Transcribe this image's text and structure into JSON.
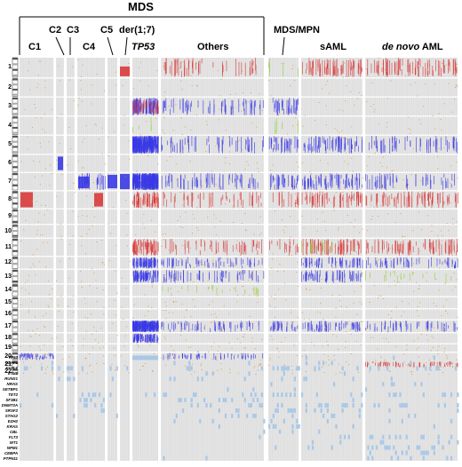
{
  "header": {
    "title": "MDS",
    "groups": [
      {
        "id": "c1",
        "label": "C1",
        "italic": false
      },
      {
        "id": "c2",
        "label": "C2",
        "italic": false
      },
      {
        "id": "c3",
        "label": "C3",
        "italic": false
      },
      {
        "id": "c4",
        "label": "C4",
        "italic": false
      },
      {
        "id": "c5",
        "label": "C5",
        "italic": false
      },
      {
        "id": "der17",
        "label": "der(1;7)",
        "italic": false
      },
      {
        "id": "tp53",
        "label": "TP53",
        "italic": true
      },
      {
        "id": "others",
        "label": "Others",
        "italic": false
      },
      {
        "id": "mdsmpn",
        "label": "MDS/MPN",
        "italic": false
      },
      {
        "id": "saml",
        "label": "sAML",
        "italic": false
      },
      {
        "id": "denovo",
        "label": "de novo",
        "label2": "AML",
        "italic": true
      }
    ]
  },
  "chromosomes": [
    "1",
    "2",
    "3",
    "4",
    "5",
    "6",
    "7",
    "8",
    "9",
    "10",
    "11",
    "12",
    "13",
    "14",
    "15",
    "16",
    "17",
    "18",
    "19",
    "20",
    "21",
    "22"
  ],
  "genes": [
    "TP53",
    "U2AF1",
    "ASXL1",
    "ETV6",
    "RUNX1",
    "NRAS",
    "SETBP1",
    "TET2",
    "SF3B1",
    "DNMT3A",
    "SRSF2",
    "STAG2",
    "EZH2",
    "KRAS",
    "CBL",
    "FLT3",
    "WT1",
    "NPM1",
    "CEBPA",
    "PTPN11"
  ],
  "colors": {
    "background": "#ffffff",
    "panel": "#e4e4e4",
    "loss": "#3a3ae6",
    "gain": "#d93a3a",
    "upd": "#8fd13a",
    "mutation": "#a8c8e8"
  }
}
